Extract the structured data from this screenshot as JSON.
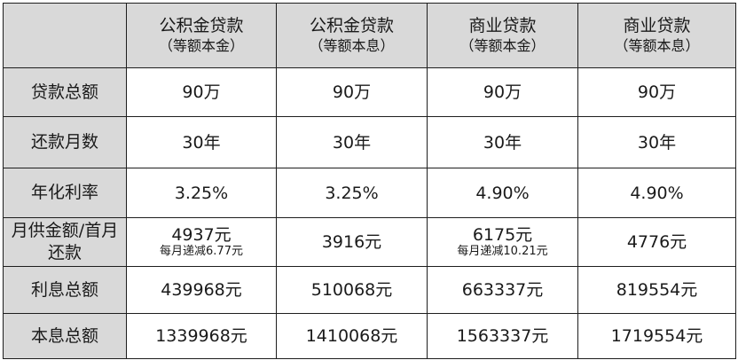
{
  "columns": [
    {
      "name": "公积金贷款",
      "sub": "（等额本金）"
    },
    {
      "name": "公积金贷款",
      "sub": "（等额本息）"
    },
    {
      "name": "商业贷款",
      "sub": "（等额本金）"
    },
    {
      "name": "商业贷款",
      "sub": "（等额本息）"
    }
  ],
  "rows": [
    {
      "label": "贷款总额",
      "cells": [
        {
          "main": "90万"
        },
        {
          "main": "90万"
        },
        {
          "main": "90万"
        },
        {
          "main": "90万"
        }
      ]
    },
    {
      "label": "还款月数",
      "cells": [
        {
          "main": "30年"
        },
        {
          "main": "30年"
        },
        {
          "main": "30年"
        },
        {
          "main": "30年"
        }
      ]
    },
    {
      "label": "年化利率",
      "cells": [
        {
          "main": "3.25%"
        },
        {
          "main": "3.25%"
        },
        {
          "main": "4.90%"
        },
        {
          "main": "4.90%"
        }
      ]
    },
    {
      "label": "月供金额/首月还款",
      "cells": [
        {
          "main": "4937元",
          "note": "每月递减6.77元"
        },
        {
          "main": "3916元"
        },
        {
          "main": "6175元",
          "note": "每月递减10.21元"
        },
        {
          "main": "4776元"
        }
      ]
    },
    {
      "label": "利息总额",
      "cells": [
        {
          "main": "439968元"
        },
        {
          "main": "510068元"
        },
        {
          "main": "663337元"
        },
        {
          "main": "819554元"
        }
      ]
    },
    {
      "label": "本息总额",
      "cells": [
        {
          "main": "1339968元"
        },
        {
          "main": "1410068元"
        },
        {
          "main": "1563337元"
        },
        {
          "main": "1719554元"
        }
      ]
    }
  ]
}
